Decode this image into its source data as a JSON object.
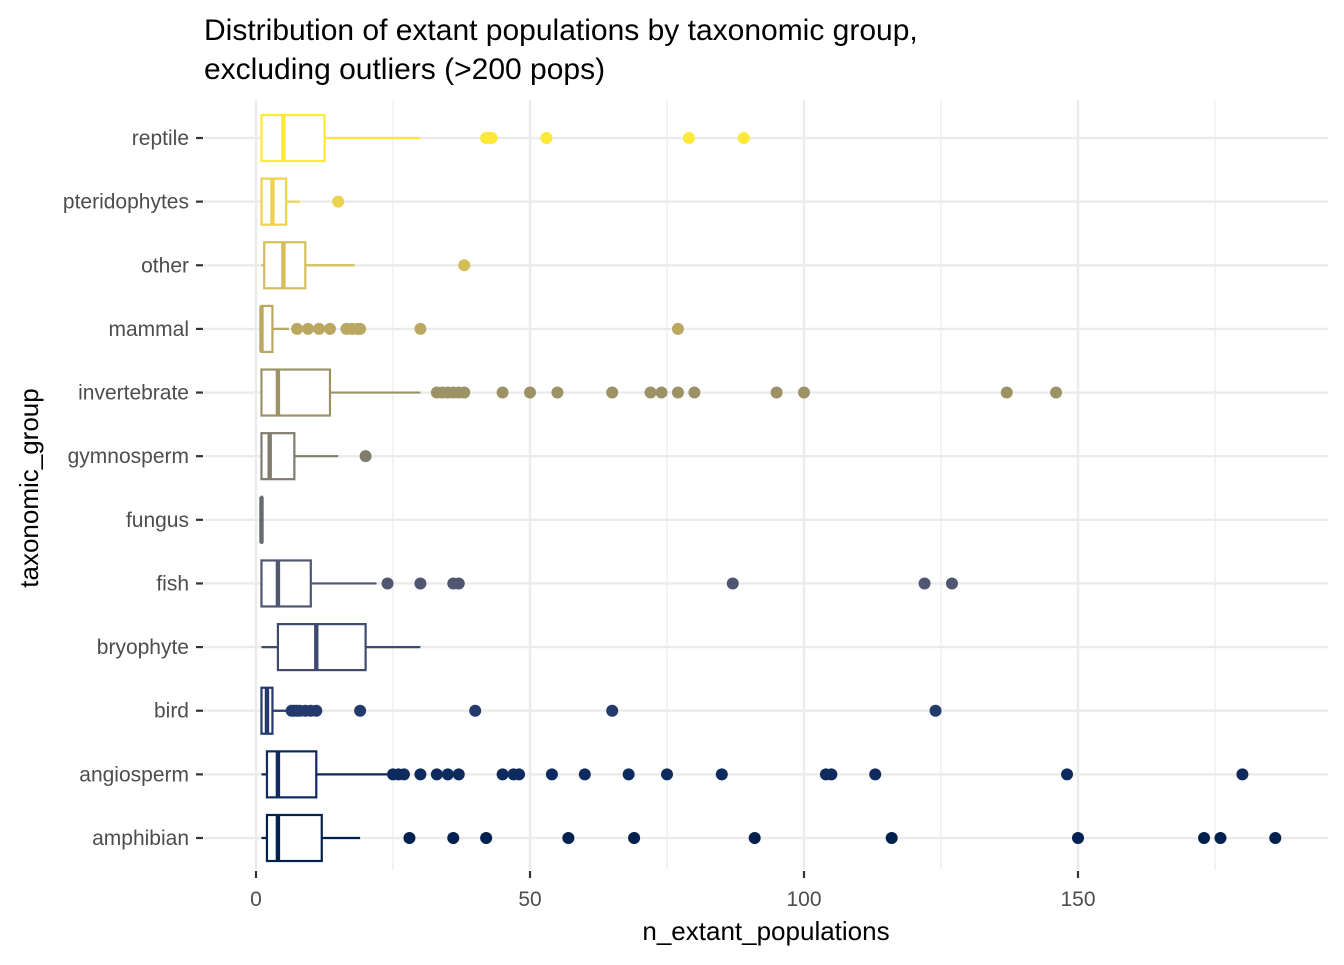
{
  "chart_data": {
    "type": "boxplot",
    "title_lines": [
      "Distribution of extant populations by taxonomic group,",
      "excluding outliers (>200 pops)"
    ],
    "xlabel": "n_extant_populations",
    "ylabel": "taxonomic_group",
    "xlim": [
      -3,
      189
    ],
    "x_ticks": [
      0,
      50,
      100,
      150
    ],
    "grid": true,
    "legend": "none",
    "outlier_style": "filled points",
    "color_scale": [
      "#00204d",
      "#fee838"
    ],
    "groups": [
      {
        "name": "reptile",
        "color": "#fee838",
        "min": 1,
        "q1": 1,
        "median": 5,
        "q3": 12.5,
        "max": 30,
        "outliers": [
          42,
          42.5,
          43,
          53,
          79,
          89
        ]
      },
      {
        "name": "pteridophytes",
        "color": "#ecd24e",
        "min": 1,
        "q1": 1,
        "median": 3,
        "q3": 5.5,
        "max": 8,
        "outliers": [
          15
        ]
      },
      {
        "name": "other",
        "color": "#d4bd5b",
        "min": 1,
        "q1": 1.5,
        "median": 5,
        "q3": 9,
        "max": 18,
        "outliers": [
          38
        ]
      },
      {
        "name": "mammal",
        "color": "#baa761",
        "min": 1,
        "q1": 1,
        "median": 1,
        "q3": 3,
        "max": 6,
        "outliers": [
          7.5,
          9.5,
          11.5,
          13.5,
          16.5,
          17.5,
          18.5,
          19,
          30,
          77
        ]
      },
      {
        "name": "invertebrate",
        "color": "#9d9265",
        "min": 1,
        "q1": 1,
        "median": 4,
        "q3": 13.5,
        "max": 30,
        "outliers": [
          33,
          34,
          35,
          36,
          37,
          38,
          45,
          50,
          55,
          65,
          72,
          74,
          77,
          80,
          95,
          100,
          137,
          146
        ]
      },
      {
        "name": "gymnosperm",
        "color": "#807c6e",
        "min": 1,
        "q1": 1,
        "median": 2.5,
        "q3": 7,
        "max": 15,
        "outliers": [
          20
        ]
      },
      {
        "name": "fungus",
        "color": "#666970",
        "min": 1,
        "q1": 1,
        "median": 1,
        "q3": 1,
        "max": 1,
        "outliers": []
      },
      {
        "name": "fish",
        "color": "#4e5670",
        "min": 1,
        "q1": 1,
        "median": 4,
        "q3": 10,
        "max": 22,
        "outliers": [
          24,
          30,
          36,
          37,
          87,
          122,
          127
        ]
      },
      {
        "name": "bryophyte",
        "color": "#3c4b6f",
        "min": 1,
        "q1": 4,
        "median": 11,
        "q3": 20,
        "max": 30,
        "outliers": []
      },
      {
        "name": "bird",
        "color": "#253a6c",
        "min": 1,
        "q1": 1,
        "median": 2,
        "q3": 3,
        "max": 6,
        "outliers": [
          6.5,
          7,
          7.5,
          8,
          9,
          10,
          11,
          19,
          40,
          65,
          124
        ]
      },
      {
        "name": "angiosperm",
        "color": "#0f2a5f",
        "min": 1,
        "q1": 2,
        "median": 4,
        "q3": 11,
        "max": 24,
        "outliers": [
          25,
          26,
          27,
          30,
          33,
          35,
          37,
          45,
          47,
          48,
          54,
          60,
          68,
          75,
          85,
          104,
          105,
          113,
          148,
          180
        ]
      },
      {
        "name": "amphibian",
        "color": "#00204d",
        "min": 1,
        "q1": 2,
        "median": 4,
        "q3": 12,
        "max": 19,
        "outliers": [
          28,
          36,
          42,
          57,
          69,
          91,
          116,
          150,
          173,
          176,
          186
        ]
      }
    ]
  }
}
